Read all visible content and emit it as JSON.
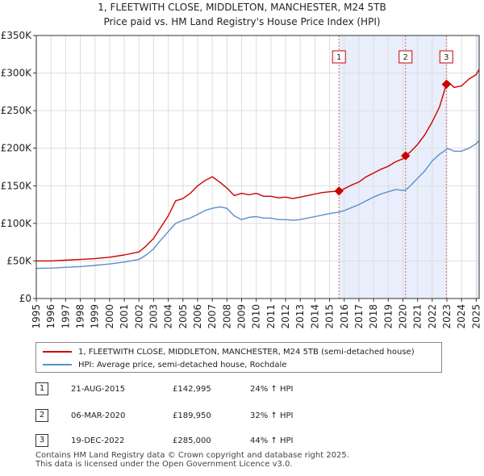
{
  "chart_data": {
    "type": "line",
    "title": "1, FLEETWITH CLOSE, MIDDLETON, MANCHESTER, M24 5TB",
    "subtitle": "Price paid vs. HM Land Registry's House Price Index (HPI)",
    "ylim": [
      0,
      350000
    ],
    "xlim": [
      1995.0,
      2025.2
    ],
    "y_ticks": [
      0,
      50000,
      100000,
      150000,
      200000,
      250000,
      300000,
      350000
    ],
    "y_tick_labels": [
      "£0",
      "£50K",
      "£100K",
      "£150K",
      "£200K",
      "£250K",
      "£300K",
      "£350K"
    ],
    "x_ticks": [
      1995,
      1996,
      1997,
      1998,
      1999,
      2000,
      2001,
      2002,
      2003,
      2004,
      2005,
      2006,
      2007,
      2008,
      2009,
      2010,
      2011,
      2012,
      2013,
      2014,
      2015,
      2016,
      2017,
      2018,
      2019,
      2020,
      2021,
      2022,
      2023,
      2024,
      2025
    ],
    "x_tick_labels": [
      "1995",
      "1996",
      "1997",
      "1998",
      "1999",
      "2000",
      "2001",
      "2002",
      "2003",
      "2004",
      "2005",
      "2006",
      "2007",
      "2008",
      "2009",
      "2010",
      "2011",
      "2012",
      "2013",
      "2014",
      "2015",
      "2016",
      "2017",
      "2018",
      "2019",
      "2020",
      "2021",
      "2022",
      "2023",
      "2024",
      "2025"
    ],
    "grid": true,
    "series": [
      {
        "name": "1, FLEETWITH CLOSE, MIDDLETON, MANCHESTER, M24 5TB (semi-detached house)",
        "color": "#cc0000",
        "x": [
          1995.0,
          1996.0,
          1997.0,
          1998.0,
          1999.0,
          2000.0,
          2001.0,
          2002.0,
          2002.5,
          2003.0,
          2003.5,
          2004.0,
          2004.5,
          2005.0,
          2005.5,
          2006.0,
          2006.5,
          2007.0,
          2007.5,
          2008.0,
          2008.5,
          2009.0,
          2009.5,
          2010.0,
          2010.5,
          2011.0,
          2011.5,
          2012.0,
          2012.5,
          2013.0,
          2013.5,
          2014.0,
          2014.5,
          2015.0,
          2015.64,
          2016.0,
          2016.5,
          2017.0,
          2017.5,
          2018.0,
          2018.5,
          2019.0,
          2019.5,
          2020.0,
          2020.18,
          2020.5,
          2021.0,
          2021.5,
          2022.0,
          2022.5,
          2022.96,
          2023.0,
          2023.5,
          2024.0,
          2024.5,
          2025.0,
          2025.2
        ],
        "values": [
          50000,
          50000,
          51000,
          52000,
          53000,
          55000,
          58000,
          62000,
          70000,
          80000,
          95000,
          110000,
          130000,
          133000,
          140000,
          150000,
          157000,
          162000,
          155000,
          147000,
          137000,
          140000,
          138000,
          140000,
          136000,
          136000,
          134000,
          135000,
          133000,
          135000,
          137000,
          139000,
          141000,
          142000,
          142995,
          146000,
          151000,
          155000,
          162000,
          167000,
          172000,
          176000,
          182000,
          186000,
          189950,
          195000,
          205000,
          218000,
          235000,
          255000,
          285000,
          290000,
          281000,
          283000,
          292000,
          298000,
          305000
        ]
      },
      {
        "name": "HPI: Average price, semi-detached house, Rochdale",
        "color": "#5b8fc9",
        "x": [
          1995.0,
          1996.0,
          1997.0,
          1998.0,
          1999.0,
          2000.0,
          2001.0,
          2002.0,
          2002.5,
          2003.0,
          2003.5,
          2004.0,
          2004.5,
          2005.0,
          2005.5,
          2006.0,
          2006.5,
          2007.0,
          2007.5,
          2008.0,
          2008.5,
          2009.0,
          2009.5,
          2010.0,
          2010.5,
          2011.0,
          2011.5,
          2012.0,
          2012.5,
          2013.0,
          2013.5,
          2014.0,
          2014.5,
          2015.0,
          2015.64,
          2016.0,
          2016.5,
          2017.0,
          2017.5,
          2018.0,
          2018.5,
          2019.0,
          2019.5,
          2020.0,
          2020.18,
          2020.5,
          2021.0,
          2021.5,
          2022.0,
          2022.5,
          2022.96,
          2023.0,
          2023.5,
          2024.0,
          2024.5,
          2025.0,
          2025.2
        ],
        "values": [
          40000,
          40500,
          41500,
          42500,
          44000,
          46000,
          48500,
          52000,
          58000,
          66000,
          78000,
          89000,
          100000,
          104000,
          107000,
          112000,
          117000,
          120000,
          122000,
          120000,
          110000,
          105000,
          108000,
          109000,
          107000,
          107000,
          105000,
          105000,
          104000,
          105000,
          107000,
          109000,
          111000,
          113000,
          115000,
          117000,
          121000,
          125000,
          130000,
          135000,
          139000,
          142000,
          145000,
          144000,
          144000,
          150000,
          160000,
          170000,
          183000,
          192000,
          198000,
          200000,
          196000,
          196000,
          200000,
          206000,
          210000
        ]
      }
    ],
    "sales": [
      {
        "label": "1",
        "x": 2015.64,
        "value": 142995,
        "date": "21-AUG-2015",
        "price": "£142,995",
        "hpi": "24% ↑ HPI"
      },
      {
        "label": "2",
        "x": 2020.18,
        "value": 189950,
        "date": "06-MAR-2020",
        "price": "£189,950",
        "hpi": "32% ↑ HPI"
      },
      {
        "label": "3",
        "x": 2022.96,
        "value": 285000,
        "date": "19-DEC-2022",
        "price": "£285,000",
        "hpi": "44% ↑ HPI"
      }
    ],
    "shaded_ranges": [
      [
        2015.64,
        2022.96
      ],
      [
        2024.95,
        2025.2
      ]
    ],
    "colors": {
      "shade": "#e8eefb",
      "vline": "#dd6677",
      "grid": "#dddddd"
    }
  },
  "legend": {
    "items": [
      {
        "label": "1, FLEETWITH CLOSE, MIDDLETON, MANCHESTER, M24 5TB (semi-detached house)",
        "color": "#cc0000"
      },
      {
        "label": "HPI: Average price, semi-detached house, Rochdale",
        "color": "#5b8fc9"
      }
    ]
  },
  "footer": {
    "line1": "Contains HM Land Registry data © Crown copyright and database right 2025.",
    "line2": "This data is licensed under the Open Government Licence v3.0."
  }
}
